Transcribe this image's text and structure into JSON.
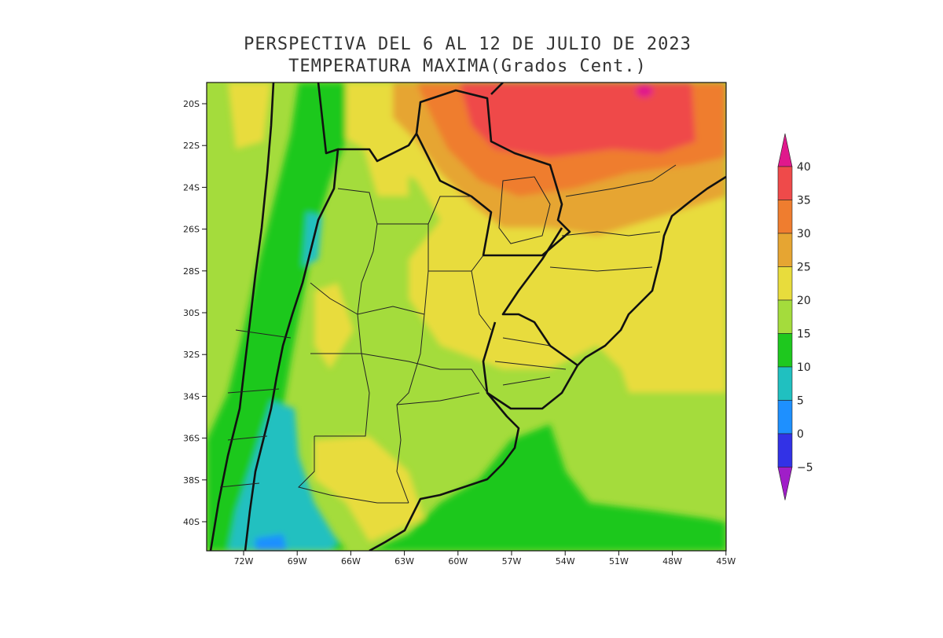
{
  "title": {
    "line1": "PERSPECTIVA DEL 6 AL 12 DE JULIO DE 2023",
    "line2": "TEMPERATURA MAXIMA(Grados Cent.)"
  },
  "axes": {
    "lat_labels": [
      "20S",
      "22S",
      "24S",
      "26S",
      "28S",
      "30S",
      "32S",
      "34S",
      "36S",
      "38S",
      "40S"
    ],
    "lon_labels": [
      "72W",
      "69W",
      "66W",
      "63W",
      "60W",
      "57W",
      "54W",
      "51W",
      "48W",
      "45W"
    ]
  },
  "colorbar": {
    "labels": [
      "40",
      "35",
      "30",
      "25",
      "20",
      "15",
      "10",
      "5",
      "0",
      "−5"
    ],
    "colors": {
      "above_40": "#e0188c",
      "35_40": "#ef4a4a",
      "30_35": "#ef7d2f",
      "25_30": "#e6a532",
      "20_25": "#e8dc3c",
      "15_20": "#a4dc3c",
      "10_15": "#1ec81e",
      "5_10": "#20c0c0",
      "0_5": "#1e90ff",
      "minus5_0": "#3232e6",
      "below_minus5": "#a01ec8"
    }
  }
}
